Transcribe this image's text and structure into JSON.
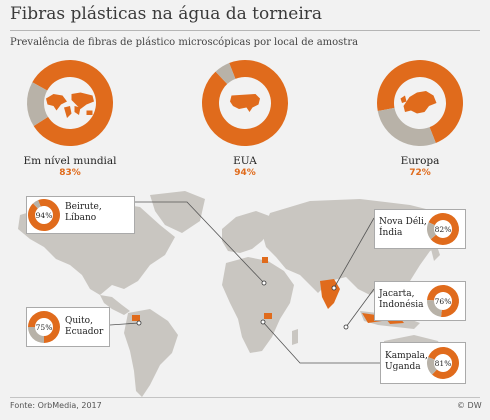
{
  "title": "Fibras plásticas na água da torneira",
  "subtitle": "Prevalência de fibras de plástico microscópicas por local de amostra",
  "colors": {
    "orange": "#e06b1c",
    "grey": "#b8b2a8",
    "map": "#c9c6c1"
  },
  "chart_data": [
    {
      "type": "pie",
      "variant": "donut",
      "slices": [
        {
          "label": "Em nível mundial",
          "value": 83,
          "display": "83%",
          "icon": "world-map-icon"
        },
        {
          "label": "EUA",
          "value": 94,
          "display": "94%",
          "icon": "usa-map-icon"
        },
        {
          "label": "Europa",
          "value": 72,
          "display": "72%",
          "icon": "europe-map-icon"
        }
      ]
    },
    {
      "type": "pie",
      "variant": "map-callout-donuts",
      "slices": [
        {
          "label": "Beirute,\nLíbano",
          "value": 94,
          "display": "94%"
        },
        {
          "label": "Nova Déli,\nÍndia",
          "value": 82,
          "display": "82%"
        },
        {
          "label": "Jacarta,\nIndonésia",
          "value": 76,
          "display": "76%"
        },
        {
          "label": "Quito,\nEcuador",
          "value": 75,
          "display": "75%"
        },
        {
          "label": "Kampala,\nUganda",
          "value": 81,
          "display": "81%"
        }
      ]
    }
  ],
  "footer": {
    "source": "Fonte: OrbMedia, 2017",
    "brand": "© DW"
  }
}
